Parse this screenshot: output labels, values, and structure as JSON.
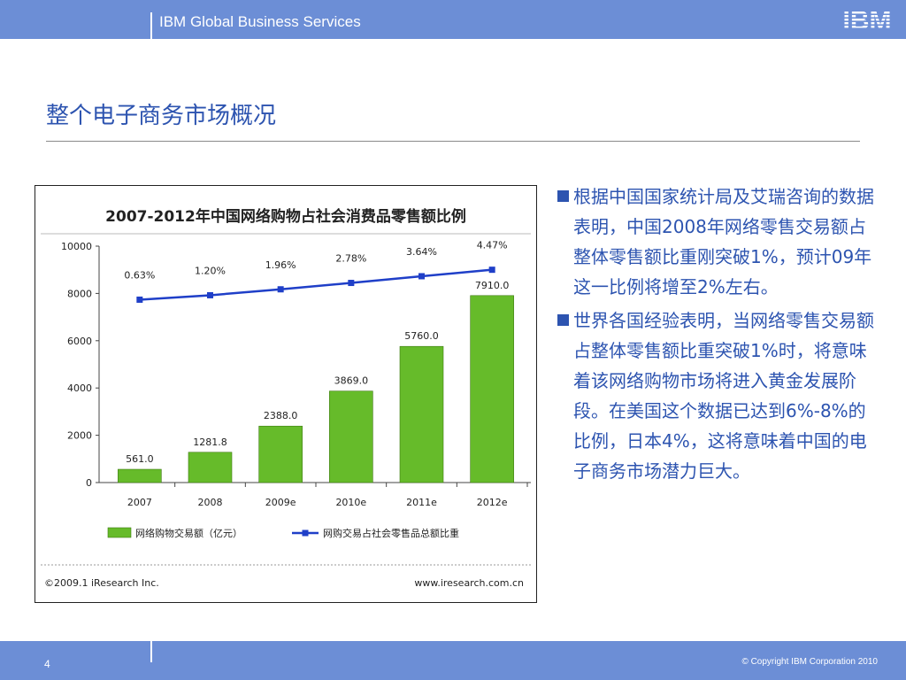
{
  "header": {
    "brand": "IBM Global Business Services",
    "logo_text": "IBM"
  },
  "slide": {
    "title": "整个电子商务市场概况",
    "bullets": [
      "根据中国国家统计局及艾瑞咨询的数据表明，中国2008年网络零售交易额占整体零售额比重刚突破1%，预计09年这一比例将增至2%左右。",
      "世界各国经验表明，当网络零售交易额占整体零售额比重突破1%时，将意味着该网络购物市场将进入黄金发展阶段。在美国这个数据已达到6%-8%的比例，日本4%，这将意味着中国的电子商务市场潜力巨大。"
    ]
  },
  "footer": {
    "page_number": "4",
    "copyright": "© Copyright IBM Corporation 2010"
  },
  "colors": {
    "bar_blue": "#6c8ed6",
    "title_blue": "#2d54b0",
    "bar_green": "#66bb2a",
    "line_blue": "#1f3fc8"
  },
  "chart_data": {
    "type": "bar",
    "title": "2007-2012年中国网络购物占社会消费品零售额比例",
    "categories": [
      "2007",
      "2008",
      "2009e",
      "2010e",
      "2011e",
      "2012e"
    ],
    "ylim": [
      0,
      10000
    ],
    "yticks": [
      "0",
      "2000",
      "4000",
      "6000",
      "8000",
      "10000"
    ],
    "series": [
      {
        "name": "网络购物交易额（亿元）",
        "kind": "bar",
        "values": [
          561.0,
          1281.8,
          2388.0,
          3869.0,
          5760.0,
          7910.0
        ],
        "labels": [
          "561.0",
          "1281.8",
          "2388.0",
          "3869.0",
          "5760.0",
          "7910.0"
        ]
      },
      {
        "name": "网购交易占社会零售品总额比重",
        "kind": "line",
        "values": [
          0.63,
          1.2,
          1.96,
          2.78,
          3.64,
          4.47
        ],
        "labels": [
          "0.63%",
          "1.20%",
          "1.96%",
          "2.78%",
          "3.64%",
          "4.47%"
        ]
      }
    ],
    "source": "©2009.1 iResearch Inc.",
    "website": "www.iresearch.com.cn",
    "legend_position": "bottom"
  }
}
